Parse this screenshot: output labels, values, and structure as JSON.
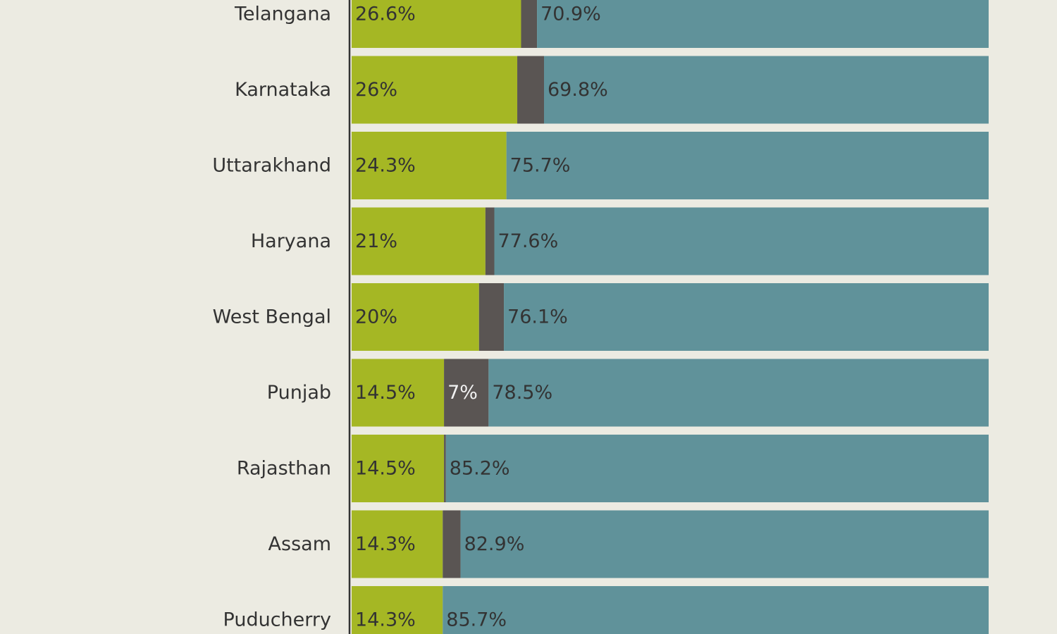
{
  "colors": {
    "background": "#ecebe2",
    "series_1": "#a5b724",
    "series_2": "#5a5553",
    "series_3": "#60929a",
    "axis": "#333333",
    "label_text": "#333333",
    "label_text_on_dark": "#f2f2f2"
  },
  "chart_data": {
    "type": "bar",
    "orientation": "horizontal",
    "stacked": true,
    "grid": false,
    "xlim": [
      0,
      100
    ],
    "categories": [
      "Telangana",
      "Karnataka",
      "Uttarakhand",
      "Haryana",
      "West Bengal",
      "Punjab",
      "Rajasthan",
      "Assam",
      "Puducherry"
    ],
    "series": [
      {
        "color": "#a5b724",
        "values": [
          26.6,
          26,
          24.3,
          21,
          20,
          14.5,
          14.5,
          14.3,
          14.3
        ],
        "labels": [
          "26.6%",
          "26%",
          "24.3%",
          "21%",
          "20%",
          "14.5%",
          "14.5%",
          "14.3%",
          "14.3%"
        ]
      },
      {
        "color": "#5a5553",
        "values": [
          2.5,
          4.2,
          0,
          1.4,
          3.9,
          7,
          0.3,
          2.8,
          0
        ],
        "labels": [
          "",
          "",
          "",
          "",
          "",
          "7%",
          "",
          "",
          ""
        ]
      },
      {
        "color": "#60929a",
        "values": [
          70.9,
          69.8,
          75.7,
          77.6,
          76.1,
          78.5,
          85.2,
          82.9,
          85.7
        ],
        "labels": [
          "70.9%",
          "69.8%",
          "75.7%",
          "77.6%",
          "76.1%",
          "78.5%",
          "85.2%",
          "82.9%",
          "85.7%"
        ]
      }
    ]
  }
}
